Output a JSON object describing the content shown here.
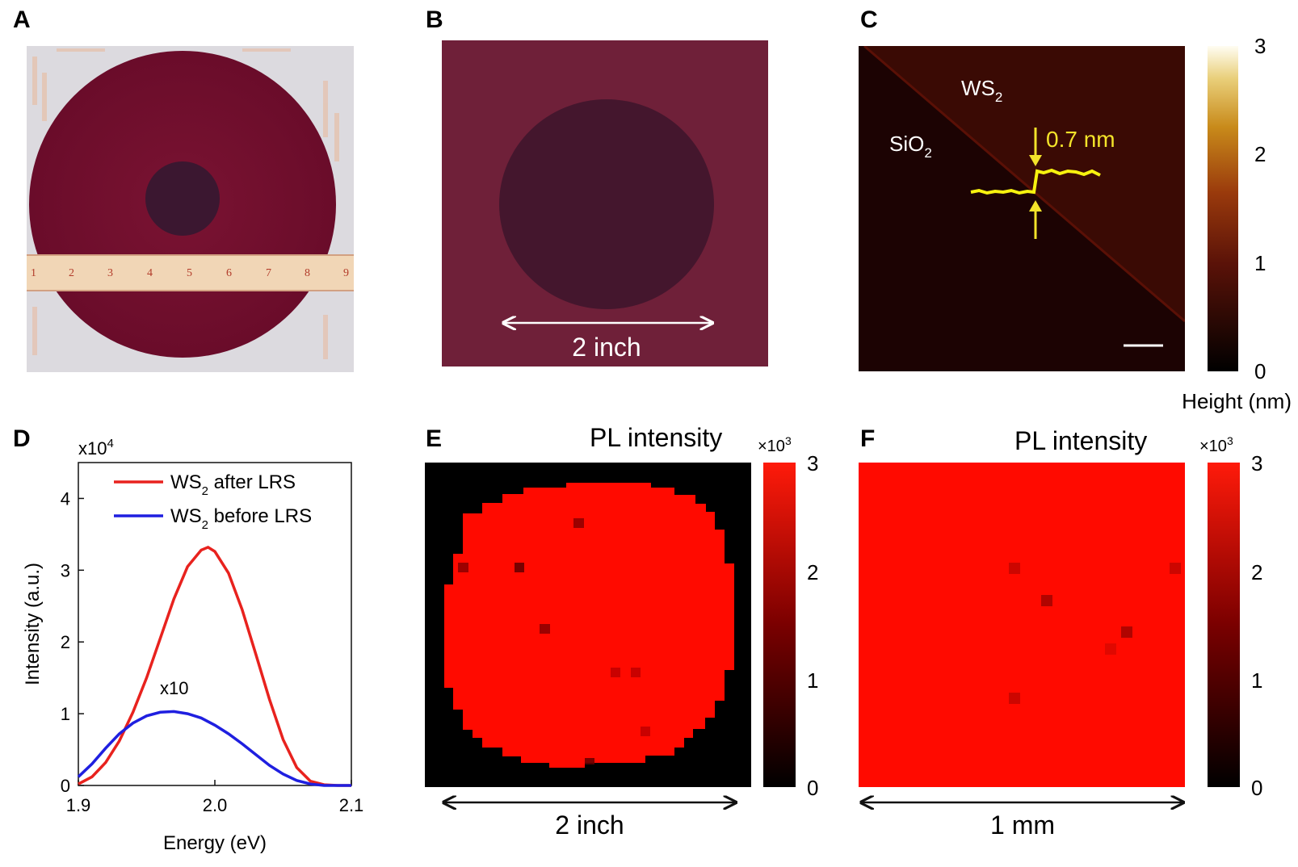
{
  "panels": {
    "A": {
      "label": "A",
      "ruler_numbers": [
        "1",
        "2",
        "3",
        "4",
        "5",
        "6",
        "7",
        "8",
        "9"
      ]
    },
    "B": {
      "label": "B",
      "scale_text": "2 inch"
    },
    "C": {
      "label": "C",
      "ws2_base": "WS",
      "ws2_sub": "2",
      "sio2_base": "SiO",
      "sio2_sub": "2",
      "step_text": "0.7 nm",
      "colorbar": {
        "ticks": [
          "3",
          "2",
          "1",
          "0"
        ],
        "title": "Height (nm)"
      }
    },
    "D": {
      "label": "D",
      "exponent_base": "x10",
      "exponent_sup": "4",
      "xlabel": "Energy (eV)",
      "ylabel": "Intensity (a.u.)",
      "xticks": [
        "1.9",
        "2.0",
        "2.1"
      ],
      "yticks": [
        "0",
        "1",
        "2",
        "3",
        "4"
      ],
      "annotation": "x10",
      "legend": [
        {
          "pre": "WS",
          "sub": "2",
          "post": " after LRS",
          "color": "#e8221e"
        },
        {
          "pre": "WS",
          "sub": "2",
          "post": " before LRS",
          "color": "#1f1fe0"
        }
      ]
    },
    "E": {
      "label": "E",
      "title": "PL intensity",
      "multiplier_base": "×10",
      "multiplier_sup": "3",
      "colorbar_ticks": [
        "3",
        "2",
        "1",
        "0"
      ],
      "scale_text": "2 inch"
    },
    "F": {
      "label": "F",
      "title": "PL intensity",
      "multiplier_base": "×10",
      "multiplier_sup": "3",
      "colorbar_ticks": [
        "3",
        "2",
        "1",
        "0"
      ],
      "scale_text": "1 mm"
    }
  },
  "chart_data": {
    "type": "line",
    "title": "",
    "xlabel": "Energy (eV)",
    "ylabel": "Intensity (a.u.)",
    "xlim": [
      1.9,
      2.1
    ],
    "ylim": [
      0,
      4.5
    ],
    "y_multiplier": "x10^4",
    "grid": false,
    "legend_position": "top-right",
    "series": [
      {
        "name": "WS2 after LRS",
        "color": "#e8221e",
        "x": [
          1.9,
          1.91,
          1.92,
          1.93,
          1.94,
          1.95,
          1.96,
          1.97,
          1.98,
          1.99,
          1.995,
          2.0,
          2.01,
          2.02,
          2.03,
          2.04,
          2.05,
          2.06,
          2.07,
          2.08,
          2.09,
          2.1
        ],
        "y": [
          0.02,
          0.12,
          0.32,
          0.62,
          1.02,
          1.5,
          2.05,
          2.6,
          3.05,
          3.28,
          3.32,
          3.26,
          2.96,
          2.45,
          1.83,
          1.2,
          0.64,
          0.25,
          0.06,
          0.01,
          0.0,
          0.0
        ]
      },
      {
        "name": "WS2 before LRS",
        "color": "#1f1fe0",
        "x": [
          1.9,
          1.91,
          1.92,
          1.93,
          1.94,
          1.95,
          1.96,
          1.97,
          1.98,
          1.99,
          2.0,
          2.01,
          2.02,
          2.03,
          2.04,
          2.05,
          2.06,
          2.07,
          2.08,
          2.09,
          2.1
        ],
        "y": [
          0.12,
          0.3,
          0.52,
          0.72,
          0.87,
          0.97,
          1.02,
          1.03,
          1.0,
          0.94,
          0.84,
          0.72,
          0.58,
          0.43,
          0.28,
          0.16,
          0.07,
          0.02,
          0.0,
          0.0,
          0.0
        ]
      }
    ]
  }
}
